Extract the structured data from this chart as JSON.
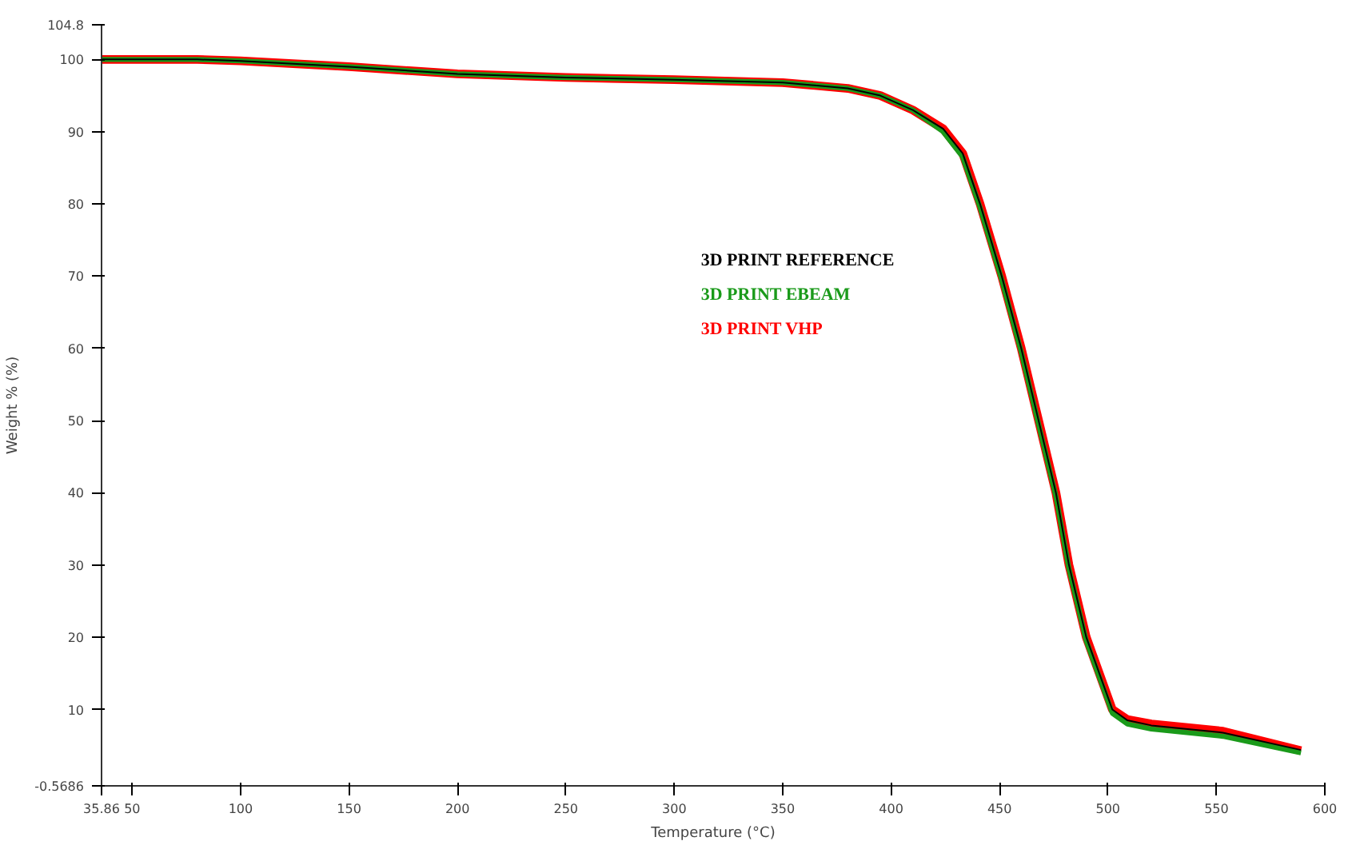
{
  "chart_data": {
    "type": "line",
    "xlabel": "Temperature (°C)",
    "ylabel": "Weight % (%)",
    "x": [
      35.86,
      80,
      100,
      150,
      200,
      250,
      300,
      350,
      380,
      395,
      410,
      424,
      433,
      441,
      451,
      460,
      468,
      476,
      482,
      490,
      502,
      509,
      520,
      553,
      589
    ],
    "series": [
      {
        "name": "3D PRINT REFERENCE",
        "color": "#000000",
        "values": [
          100,
          100,
          99.8,
          99,
          98,
          97.5,
          97.2,
          96.8,
          96,
          95,
          93,
          90.4,
          87,
          80,
          70,
          60,
          50,
          40,
          30,
          20,
          10,
          8.5,
          7.8,
          6.8,
          4.4
        ]
      },
      {
        "name": "3D PRINT EBEAM",
        "color": "#1a9a1a",
        "values": [
          100,
          100,
          99.8,
          99,
          98,
          97.5,
          97.2,
          96.8,
          96,
          95,
          93,
          90,
          86.5,
          79.5,
          69.5,
          59.5,
          49.5,
          39.5,
          29.5,
          19.5,
          9.5,
          8,
          7.3,
          6.3,
          4
        ]
      },
      {
        "name": "3D PRINT VHP",
        "color": "#ff0000",
        "values": [
          100,
          100,
          99.8,
          99,
          98,
          97.5,
          97.2,
          96.8,
          96,
          95,
          93,
          90.4,
          87,
          80,
          70,
          60,
          50,
          40,
          30,
          20,
          10,
          8.6,
          8,
          7,
          4.3
        ]
      }
    ],
    "xlim": [
      35.86,
      600
    ],
    "ylim": [
      -0.5686,
      104.8
    ],
    "xticks": [
      35.86,
      50,
      100,
      150,
      200,
      250,
      300,
      350,
      400,
      450,
      500,
      550,
      600
    ],
    "yticks": [
      {
        "value": -0.5686,
        "label": "-0.5686"
      },
      10,
      20,
      30,
      40,
      50,
      60,
      70,
      80,
      90,
      100,
      104.8
    ],
    "grid": false,
    "legend": "center",
    "marker": "none",
    "line_style": "solid"
  }
}
